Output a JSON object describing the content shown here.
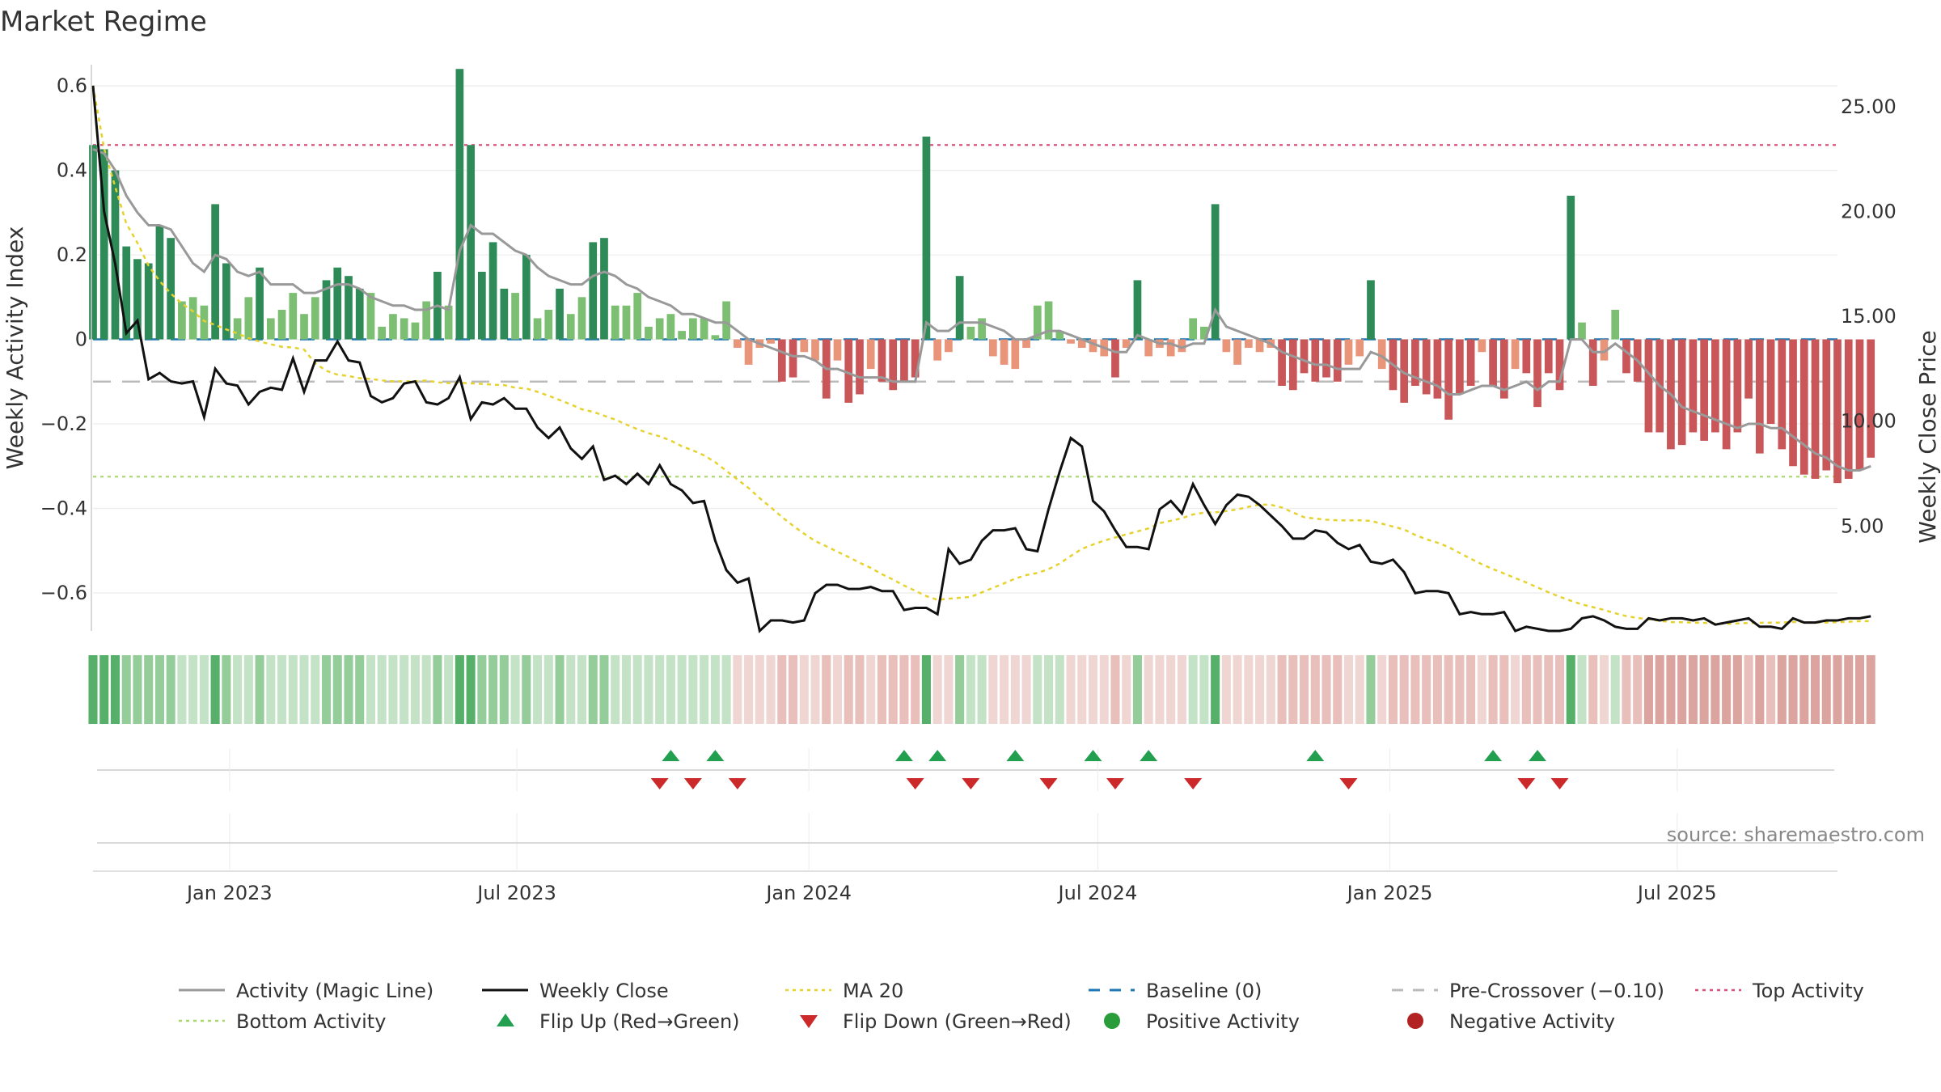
{
  "title": "Market Regime",
  "source": "source: sharemaestro.com",
  "colors": {
    "strong_green": "#2e8b57",
    "light_green": "#7dbf72",
    "strong_red": "#c9575a",
    "light_red": "#e8957a",
    "activity_line": "#999999",
    "close_line": "#111111",
    "ma_line": "#e6d22e",
    "baseline": "#1f77b4",
    "pre_crossover": "#bbbbbb",
    "top_activity": "#d9547a",
    "bottom_activity": "#a6d96a",
    "flip_up": "#22a050",
    "flip_down": "#cc2a2a",
    "positive_dot": "#2a9d3a",
    "negative_dot": "#b22222"
  },
  "chart_data": {
    "type": "bar",
    "left_axis": {
      "label": "Weekly Activity Index",
      "ylim": [
        -0.69,
        0.65
      ],
      "ticks": [
        0.6,
        0.4,
        0.2,
        0,
        -0.2,
        -0.4,
        -0.6
      ],
      "tick_labels": [
        "0.6",
        "0.4",
        "0.2",
        "0",
        "−0.2",
        "−0.4",
        "−0.6"
      ]
    },
    "right_axis": {
      "label": "Weekly Close Price",
      "ylim": [
        0.0,
        27.0
      ],
      "ticks": [
        25,
        20,
        15,
        10,
        5
      ],
      "tick_labels": [
        "25.00",
        "20.00",
        "15.00",
        "10.00",
        "5.00"
      ]
    },
    "x_axis": {
      "start": "2022-10-07",
      "end": "2025-10-10",
      "ticks": [
        "2023-01-01",
        "2023-07-01",
        "2024-01-01",
        "2024-07-01",
        "2025-01-01",
        "2025-07-01"
      ],
      "tick_labels": [
        "Jan 2023",
        "Jul 2023",
        "Jan 2024",
        "Jul 2024",
        "Jan 2025",
        "Jul 2025"
      ]
    },
    "reference_lines": {
      "top_activity": 0.46,
      "pre_crossover": -0.1,
      "bottom_activity": -0.325,
      "baseline": 0
    },
    "activity_bars": [
      0.46,
      0.45,
      0.4,
      0.22,
      0.19,
      0.18,
      0.27,
      0.24,
      0.09,
      0.1,
      0.08,
      0.32,
      0.18,
      0.05,
      0.1,
      0.17,
      0.05,
      0.07,
      0.11,
      0.06,
      0.1,
      0.14,
      0.17,
      0.15,
      0.12,
      0.11,
      0.03,
      0.06,
      0.05,
      0.04,
      0.09,
      0.16,
      0.08,
      0.64,
      0.46,
      0.16,
      0.23,
      0.12,
      0.11,
      0.2,
      0.05,
      0.07,
      0.12,
      0.06,
      0.1,
      0.23,
      0.24,
      0.08,
      0.08,
      0.11,
      0.03,
      0.05,
      0.06,
      0.02,
      0.05,
      0.05,
      0.01,
      0.09,
      -0.02,
      -0.06,
      -0.02,
      -0.01,
      -0.1,
      -0.09,
      -0.03,
      -0.05,
      -0.14,
      -0.05,
      -0.15,
      -0.13,
      -0.07,
      -0.1,
      -0.12,
      -0.1,
      -0.09,
      0.48,
      -0.05,
      -0.03,
      0.15,
      0.03,
      0.05,
      -0.04,
      -0.06,
      -0.07,
      -0.02,
      0.08,
      0.09,
      0.02,
      -0.01,
      -0.02,
      -0.03,
      -0.04,
      -0.09,
      -0.02,
      0.14,
      -0.04,
      -0.02,
      -0.04,
      -0.03,
      0.05,
      0.03,
      0.32,
      -0.03,
      -0.06,
      -0.02,
      -0.03,
      -0.02,
      -0.11,
      -0.12,
      -0.08,
      -0.1,
      -0.09,
      -0.1,
      -0.06,
      -0.04,
      0.14,
      -0.07,
      -0.12,
      -0.15,
      -0.11,
      -0.13,
      -0.14,
      -0.19,
      -0.13,
      -0.11,
      -0.03,
      -0.11,
      -0.14,
      -0.07,
      -0.08,
      -0.16,
      -0.08,
      -0.12,
      0.34,
      0.04,
      -0.11,
      -0.05,
      0.07,
      -0.08,
      -0.1,
      -0.22,
      -0.22,
      -0.26,
      -0.25,
      -0.22,
      -0.24,
      -0.22,
      -0.26,
      -0.22,
      -0.14,
      -0.27,
      -0.2,
      -0.26,
      -0.3,
      -0.32,
      -0.33,
      -0.31,
      -0.34,
      -0.33,
      -0.31,
      -0.28
    ],
    "activity_line": [
      0.45,
      0.44,
      0.4,
      0.34,
      0.3,
      0.27,
      0.27,
      0.26,
      0.22,
      0.18,
      0.16,
      0.2,
      0.19,
      0.16,
      0.15,
      0.16,
      0.13,
      0.13,
      0.13,
      0.11,
      0.11,
      0.12,
      0.13,
      0.13,
      0.12,
      0.1,
      0.09,
      0.08,
      0.08,
      0.07,
      0.07,
      0.08,
      0.07,
      0.21,
      0.27,
      0.25,
      0.25,
      0.23,
      0.21,
      0.2,
      0.17,
      0.15,
      0.14,
      0.13,
      0.13,
      0.15,
      0.16,
      0.15,
      0.13,
      0.12,
      0.1,
      0.09,
      0.08,
      0.06,
      0.06,
      0.05,
      0.04,
      0.04,
      0.02,
      0.0,
      -0.01,
      -0.02,
      -0.03,
      -0.04,
      -0.04,
      -0.05,
      -0.07,
      -0.07,
      -0.08,
      -0.09,
      -0.09,
      -0.09,
      -0.1,
      -0.1,
      -0.1,
      0.04,
      0.02,
      0.02,
      0.04,
      0.04,
      0.04,
      0.03,
      0.02,
      0.0,
      0.0,
      0.01,
      0.02,
      0.02,
      0.01,
      0.0,
      -0.01,
      -0.02,
      -0.03,
      -0.03,
      0.01,
      0.0,
      -0.01,
      -0.01,
      -0.02,
      -0.01,
      -0.01,
      0.07,
      0.03,
      0.02,
      0.01,
      0.0,
      -0.01,
      -0.03,
      -0.04,
      -0.05,
      -0.06,
      -0.06,
      -0.07,
      -0.07,
      -0.07,
      -0.03,
      -0.04,
      -0.06,
      -0.08,
      -0.09,
      -0.1,
      -0.11,
      -0.13,
      -0.13,
      -0.12,
      -0.11,
      -0.11,
      -0.12,
      -0.11,
      -0.1,
      -0.12,
      -0.1,
      -0.1,
      0.0,
      0.0,
      -0.03,
      -0.03,
      -0.01,
      -0.03,
      -0.05,
      -0.08,
      -0.11,
      -0.13,
      -0.16,
      -0.17,
      -0.18,
      -0.19,
      -0.2,
      -0.21,
      -0.2,
      -0.2,
      -0.21,
      -0.21,
      -0.23,
      -0.25,
      -0.27,
      -0.28,
      -0.3,
      -0.31,
      -0.31,
      -0.3
    ],
    "weekly_close": [
      26.0,
      20.0,
      17.5,
      14.2,
      14.8,
      12.0,
      12.3,
      11.9,
      11.8,
      11.9,
      10.2,
      12.5,
      11.8,
      11.7,
      10.8,
      11.4,
      11.6,
      11.5,
      13.0,
      11.4,
      12.9,
      12.9,
      13.8,
      12.9,
      12.8,
      11.2,
      10.9,
      11.1,
      11.8,
      11.9,
      10.9,
      10.8,
      11.1,
      12.1,
      10.1,
      10.9,
      10.8,
      11.1,
      10.6,
      10.6,
      9.7,
      9.2,
      9.7,
      8.7,
      8.2,
      8.8,
      7.2,
      7.4,
      7.0,
      7.5,
      7.0,
      7.9,
      7.0,
      6.7,
      6.1,
      6.2,
      4.3,
      2.9,
      2.3,
      2.5,
      0.0,
      0.5,
      0.5,
      0.4,
      0.5,
      1.8,
      2.2,
      2.2,
      2.0,
      2.0,
      2.1,
      1.9,
      1.9,
      1.0,
      1.1,
      1.1,
      0.8,
      3.9,
      3.2,
      3.4,
      4.3,
      4.8,
      4.8,
      4.9,
      3.9,
      3.8,
      5.8,
      7.6,
      9.2,
      8.8,
      6.2,
      5.7,
      4.8,
      4.0,
      4.0,
      3.9,
      5.8,
      6.2,
      5.6,
      7.0,
      6.0,
      5.1,
      6.0,
      6.5,
      6.4,
      6.0,
      5.5,
      5.0,
      4.4,
      4.4,
      4.8,
      4.7,
      4.2,
      3.9,
      4.1,
      3.3,
      3.2,
      3.4,
      2.8,
      1.8,
      1.9,
      1.9,
      1.8,
      0.8,
      0.9,
      0.8,
      0.8,
      0.9,
      0.0,
      0.2,
      0.1,
      0.0,
      0.0,
      0.1,
      0.6,
      0.7,
      0.5,
      0.2,
      0.1,
      0.1,
      0.6,
      0.5,
      0.6,
      0.6,
      0.5,
      0.6,
      0.3,
      0.4,
      0.5,
      0.6,
      0.2,
      0.2,
      0.1,
      0.6,
      0.4,
      0.4,
      0.5,
      0.5,
      0.6,
      0.6,
      0.7,
      0.7
    ],
    "close_price_series": [
      26.0,
      20.0,
      17.5,
      14.2,
      14.8,
      12.0,
      12.3,
      11.9,
      11.8,
      11.9,
      10.2,
      12.5,
      11.8,
      11.7,
      10.8,
      11.4,
      11.6,
      11.5,
      13.0,
      11.4,
      12.9,
      12.9,
      13.8,
      12.9,
      12.8,
      11.2,
      10.9,
      11.1,
      11.8,
      11.9,
      10.9,
      10.8,
      11.1,
      12.1,
      10.1,
      10.9,
      10.8,
      11.1,
      10.6,
      10.6,
      9.7,
      9.2,
      9.7,
      8.7,
      8.2,
      8.8,
      7.2,
      7.4,
      7.0,
      7.5,
      7.0,
      7.9,
      7.0,
      6.7,
      6.1,
      6.2,
      4.3,
      2.9,
      2.3,
      2.5,
      0.0,
      0.5,
      0.5,
      0.4,
      0.5,
      1.8,
      2.2,
      2.2,
      2.0,
      2.0,
      2.1,
      1.9,
      1.9,
      1.0,
      1.1,
      1.1,
      0.8,
      3.9,
      3.2,
      3.4,
      4.3,
      4.8,
      4.8,
      4.9,
      3.9,
      3.8,
      5.8,
      7.6,
      9.2,
      8.8,
      6.2,
      5.7,
      4.8,
      4.0,
      4.0,
      3.9,
      5.8,
      6.2,
      5.6,
      7.0,
      6.0,
      5.1,
      6.0,
      6.5,
      6.4,
      6.0,
      5.5,
      5.0,
      4.4,
      4.4,
      4.8,
      4.7,
      4.2,
      3.9,
      4.1,
      3.3,
      3.2,
      3.4,
      2.8,
      1.8,
      1.9,
      1.9,
      1.8,
      0.8,
      0.9,
      0.8,
      0.8,
      0.9,
      0.0,
      0.2,
      0.1,
      0.0,
      0.0,
      0.1,
      0.6,
      0.7,
      0.5,
      0.2,
      0.1,
      0.1,
      0.6,
      0.5,
      0.6,
      0.6,
      0.5,
      0.6,
      0.3,
      0.4,
      0.5,
      0.6,
      0.2,
      0.2,
      0.1,
      0.6,
      0.4,
      0.4,
      0.5,
      0.5,
      0.6,
      0.6,
      0.7,
      0.7
    ],
    "flip_up_dates": [
      "2023-10-06",
      "2023-11-03",
      "2024-03-01",
      "2024-03-22",
      "2024-05-10",
      "2024-06-28",
      "2024-08-02",
      "2024-11-15",
      "2025-03-07",
      "2025-04-04"
    ],
    "flip_down_dates": [
      "2023-09-29",
      "2023-10-20",
      "2023-11-17",
      "2024-03-08",
      "2024-04-12",
      "2024-05-31",
      "2024-07-12",
      "2024-08-30",
      "2024-12-06",
      "2025-03-28",
      "2025-04-18"
    ],
    "legend": {
      "position": "bottom",
      "items": [
        {
          "label": "Activity (Magic Line)",
          "kind": "line",
          "color_key": "activity_line"
        },
        {
          "label": "Weekly Close",
          "kind": "line",
          "color_key": "close_line"
        },
        {
          "label": "MA 20",
          "kind": "dotted",
          "color_key": "ma_line"
        },
        {
          "label": "Baseline (0)",
          "kind": "dashed",
          "color_key": "baseline"
        },
        {
          "label": "Pre-Crossover (−0.10)",
          "kind": "dashed",
          "color_key": "pre_crossover"
        },
        {
          "label": "Top Activity",
          "kind": "dotted",
          "color_key": "top_activity"
        },
        {
          "label": "Bottom Activity",
          "kind": "dotted",
          "color_key": "bottom_activity"
        },
        {
          "label": "Flip Up (Red→Green)",
          "kind": "triangle-up",
          "color_key": "flip_up"
        },
        {
          "label": "Flip Down (Green→Red)",
          "kind": "triangle-down",
          "color_key": "flip_down"
        },
        {
          "label": "Positive Activity",
          "kind": "circle",
          "color_key": "positive_dot"
        },
        {
          "label": "Negative Activity",
          "kind": "circle",
          "color_key": "negative_dot"
        }
      ]
    }
  }
}
